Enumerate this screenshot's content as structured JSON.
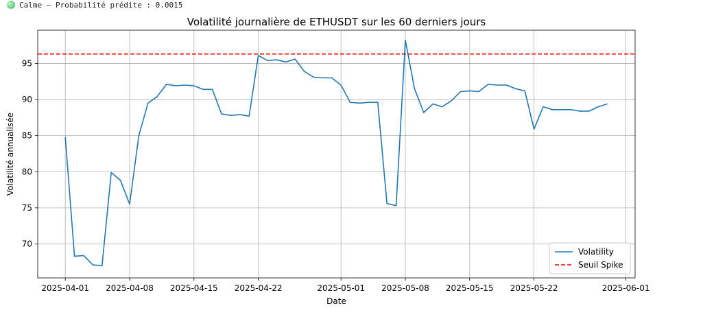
{
  "status": {
    "text": "Calme — Probabilité prédite : 0.0015",
    "icon": "green-circle-icon",
    "color": "#5cc977"
  },
  "chart_data": {
    "type": "line",
    "title": "Volatilité journalière de ETHUSDT sur les 60 derniers jours",
    "xlabel": "Date",
    "ylabel": "Volatilité annualisée",
    "x_ticks": [
      "2025-04-01",
      "2025-04-08",
      "2025-04-15",
      "2025-04-22",
      "2025-05-01",
      "2025-05-08",
      "2025-05-15",
      "2025-05-22",
      "2025-06-01"
    ],
    "y_ticks": [
      "70",
      "75",
      "80",
      "85",
      "90",
      "95"
    ],
    "xlim": [
      "2025-03-29",
      "2025-06-02"
    ],
    "ylim": [
      65.3,
      99.6
    ],
    "grid": true,
    "legend_position": "lower right",
    "series": [
      {
        "name": "Volatility",
        "color": "#1f77b4",
        "style": "solid",
        "x": [
          "2025-04-01",
          "2025-04-02",
          "2025-04-03",
          "2025-04-04",
          "2025-04-05",
          "2025-04-06",
          "2025-04-07",
          "2025-04-08",
          "2025-04-09",
          "2025-04-10",
          "2025-04-11",
          "2025-04-12",
          "2025-04-13",
          "2025-04-14",
          "2025-04-15",
          "2025-04-16",
          "2025-04-17",
          "2025-04-18",
          "2025-04-19",
          "2025-04-20",
          "2025-04-21",
          "2025-04-22",
          "2025-04-23",
          "2025-04-24",
          "2025-04-25",
          "2025-04-26",
          "2025-04-27",
          "2025-04-28",
          "2025-04-29",
          "2025-04-30",
          "2025-05-01",
          "2025-05-02",
          "2025-05-03",
          "2025-05-04",
          "2025-05-05",
          "2025-05-06",
          "2025-05-07",
          "2025-05-08",
          "2025-05-09",
          "2025-05-10",
          "2025-05-11",
          "2025-05-12",
          "2025-05-13",
          "2025-05-14",
          "2025-05-15",
          "2025-05-16",
          "2025-05-17",
          "2025-05-18",
          "2025-05-19",
          "2025-05-20",
          "2025-05-21",
          "2025-05-22",
          "2025-05-23",
          "2025-05-24",
          "2025-05-25",
          "2025-05-26",
          "2025-05-27",
          "2025-05-28",
          "2025-05-29",
          "2025-05-30"
        ],
        "values": [
          84.8,
          68.3,
          68.4,
          67.1,
          67.0,
          79.9,
          78.8,
          75.5,
          85.0,
          89.5,
          90.4,
          92.1,
          91.9,
          92.0,
          91.9,
          91.4,
          91.4,
          88.0,
          87.8,
          87.9,
          87.7,
          96.1,
          95.4,
          95.5,
          95.2,
          95.6,
          93.9,
          93.1,
          93.0,
          93.0,
          92.0,
          89.6,
          89.5,
          89.6,
          89.6,
          75.6,
          75.3,
          98.2,
          91.5,
          88.2,
          89.4,
          89.0,
          89.8,
          91.1,
          91.2,
          91.1,
          92.1,
          92.0,
          92.0,
          91.5,
          91.2,
          85.9,
          89.0,
          88.6,
          88.6,
          88.6,
          88.4,
          88.4,
          89.0,
          89.4
        ]
      },
      {
        "name": "Seuil Spike",
        "color": "#ff0000",
        "style": "dashed",
        "y": 96.3
      }
    ]
  }
}
